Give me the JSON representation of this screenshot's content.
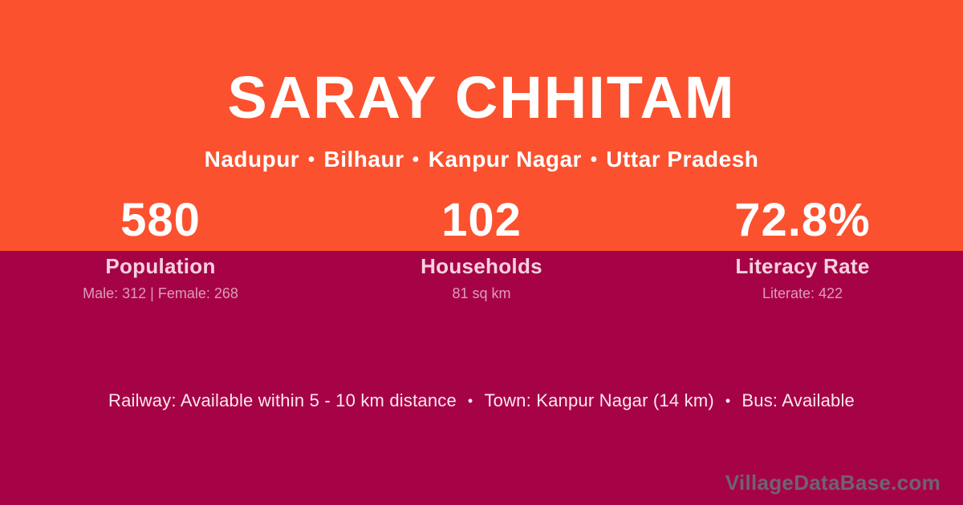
{
  "header": {
    "title": "SARAY CHHITAM",
    "location_parts": [
      "Nadupur",
      "Bilhaur",
      "Kanpur Nagar",
      "Uttar Pradesh"
    ],
    "separator": "•"
  },
  "stats": [
    {
      "value": "580",
      "label": "Population",
      "detail": "Male: 312 | Female: 268"
    },
    {
      "value": "102",
      "label": "Households",
      "detail": "81 sq km"
    },
    {
      "value": "72.8%",
      "label": "Literacy Rate",
      "detail": "Literate: 422"
    }
  ],
  "footer": {
    "items": [
      "Railway: Available within 5 - 10 km distance",
      "Town: Kanpur Nagar (14 km)",
      "Bus: Available"
    ],
    "separator": "•"
  },
  "watermark": {
    "text": "VillageDataBase.com"
  },
  "colors": {
    "top_background": "#FB512E",
    "bottom_background": "#A60346",
    "heading_text": "#FFFFFF",
    "stat_label_text": "#F6D2DE",
    "stat_detail_text": "#DE9CB6",
    "footer_text": "#FAE8EE",
    "watermark_text": "#6E6370"
  }
}
